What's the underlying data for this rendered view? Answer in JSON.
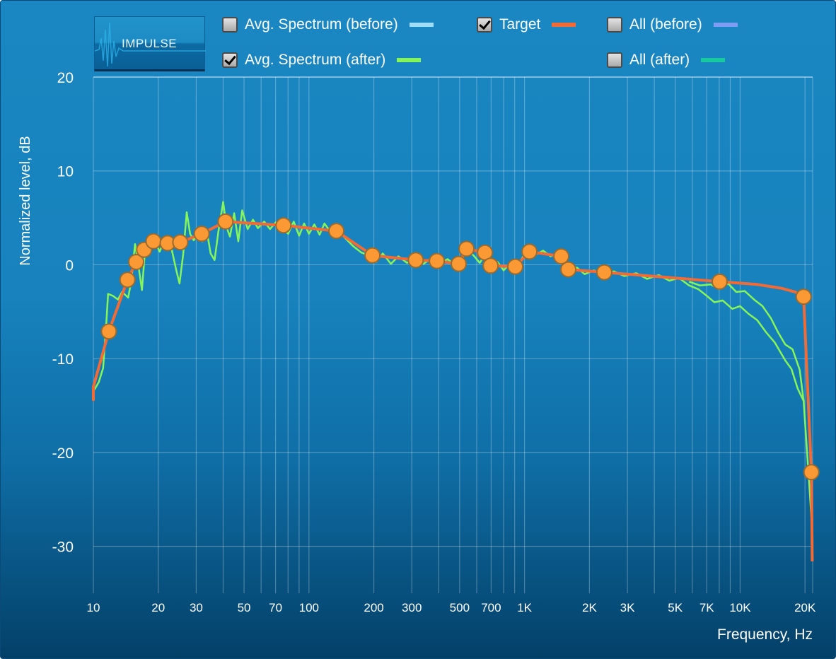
{
  "impulse_button": {
    "label": "IMPULSE"
  },
  "legend": [
    {
      "label": "Avg. Spectrum (before)",
      "checked": false,
      "color": "#9fdcf8"
    },
    {
      "label": "Avg. Spectrum (after)",
      "checked": true,
      "color": "#85f55a"
    },
    {
      "label": "Target",
      "checked": true,
      "color": "#f26a35"
    },
    {
      "label": "All (before)",
      "checked": false,
      "color": "#7f9cf5"
    },
    {
      "label": "All (after)",
      "checked": false,
      "color": "#19c9a0"
    }
  ],
  "chart_data": {
    "type": "line",
    "xlabel": "Frequency, Hz",
    "ylabel": "Normalized level, dB",
    "xscale": "log",
    "xlim": [
      10,
      21700
    ],
    "ylim": [
      -35,
      20
    ],
    "grid": true,
    "xticks": [
      {
        "v": 10,
        "label": "10"
      },
      {
        "v": 20,
        "label": "20"
      },
      {
        "v": 30,
        "label": "30"
      },
      {
        "v": 50,
        "label": "50"
      },
      {
        "v": 70,
        "label": "70"
      },
      {
        "v": 100,
        "label": "100"
      },
      {
        "v": 200,
        "label": "200"
      },
      {
        "v": 300,
        "label": "300"
      },
      {
        "v": 500,
        "label": "500"
      },
      {
        "v": 700,
        "label": "700"
      },
      {
        "v": 1000,
        "label": "1K"
      },
      {
        "v": 2000,
        "label": "2K"
      },
      {
        "v": 3000,
        "label": "3K"
      },
      {
        "v": 5000,
        "label": "5K"
      },
      {
        "v": 7000,
        "label": "7K"
      },
      {
        "v": 10000,
        "label": "10K"
      },
      {
        "v": 20000,
        "label": "20K"
      }
    ],
    "xgrid": [
      10,
      20,
      30,
      40,
      50,
      60,
      70,
      80,
      90,
      100,
      200,
      300,
      400,
      500,
      600,
      700,
      800,
      900,
      1000,
      2000,
      3000,
      4000,
      5000,
      6000,
      7000,
      8000,
      9000,
      10000,
      20000
    ],
    "yticks": [
      {
        "v": 20,
        "label": "20"
      },
      {
        "v": 10,
        "label": "10"
      },
      {
        "v": 0,
        "label": "0"
      },
      {
        "v": -10,
        "label": "-10"
      },
      {
        "v": -20,
        "label": "-20"
      },
      {
        "v": -30,
        "label": "-30"
      }
    ],
    "series": [
      {
        "name": "Avg. Spectrum (after) L",
        "color": "#85f55a",
        "points": [
          [
            10,
            -13.5
          ],
          [
            10.6,
            -12.5
          ],
          [
            11.1,
            -11
          ],
          [
            11.5,
            -6
          ],
          [
            11.7,
            -3.1
          ],
          [
            12.3,
            -3.3
          ],
          [
            13,
            -3.7
          ],
          [
            13.6,
            -2.9
          ],
          [
            14.5,
            -3.5
          ],
          [
            15,
            -1.7
          ],
          [
            15.6,
            2.2
          ],
          [
            16,
            0.7
          ],
          [
            16.8,
            -2.7
          ],
          [
            17.3,
            1.1
          ],
          [
            18.1,
            2.2
          ],
          [
            19.3,
            2.6
          ],
          [
            20.3,
            1.4
          ],
          [
            21.4,
            2.7
          ],
          [
            22.7,
            2.4
          ],
          [
            24.2,
            -0.5
          ],
          [
            25.1,
            -2
          ],
          [
            26.1,
            1.1
          ],
          [
            27.1,
            5.6
          ],
          [
            28.1,
            3.3
          ],
          [
            29.2,
            2.6
          ],
          [
            30.8,
            3.5
          ],
          [
            32,
            2.5
          ],
          [
            33.5,
            3.8
          ],
          [
            35,
            1.2
          ],
          [
            36.5,
            0.5
          ],
          [
            38,
            3.5
          ],
          [
            40,
            6.7
          ],
          [
            41.5,
            4
          ],
          [
            43,
            3
          ],
          [
            45,
            5.5
          ],
          [
            47,
            2.5
          ],
          [
            49,
            5.8
          ],
          [
            52,
            3.8
          ],
          [
            55,
            4.8
          ],
          [
            58,
            3.9
          ],
          [
            62,
            4.6
          ],
          [
            66,
            3.8
          ],
          [
            70,
            4.5
          ],
          [
            75,
            4
          ],
          [
            80,
            3.3
          ],
          [
            85,
            4.6
          ],
          [
            90,
            3.1
          ],
          [
            95,
            4.4
          ],
          [
            100,
            3.3
          ],
          [
            106,
            4.3
          ],
          [
            112,
            3.2
          ],
          [
            118,
            4.4
          ],
          [
            125,
            3.6
          ],
          [
            134,
            3.8
          ],
          [
            145,
            3
          ],
          [
            160,
            2
          ],
          [
            175,
            1.3
          ],
          [
            190,
            1
          ],
          [
            205,
            0.3
          ],
          [
            220,
            1.2
          ],
          [
            240,
            0.1
          ],
          [
            260,
            0.9
          ],
          [
            285,
            0.2
          ],
          [
            310,
            0.8
          ],
          [
            340,
            0.1
          ],
          [
            370,
            0.7
          ],
          [
            400,
            0.1
          ],
          [
            440,
            0.6
          ],
          [
            480,
            -0.1
          ],
          [
            510,
            0.5
          ],
          [
            540,
            1.6
          ],
          [
            580,
            1
          ],
          [
            620,
            0.2
          ],
          [
            660,
            1.2
          ],
          [
            700,
            -0.5
          ],
          [
            750,
            0.3
          ],
          [
            800,
            -0.6
          ],
          [
            860,
            0.2
          ],
          [
            920,
            -0.3
          ],
          [
            980,
            0.8
          ],
          [
            1050,
            1.6
          ],
          [
            1130,
            1.1
          ],
          [
            1220,
            1.5
          ],
          [
            1320,
            0.9
          ],
          [
            1420,
            1.2
          ],
          [
            1500,
            0.2
          ],
          [
            1600,
            -0.8
          ],
          [
            1750,
            -0.3
          ],
          [
            1900,
            -1
          ],
          [
            2100,
            -0.6
          ],
          [
            2300,
            -1
          ],
          [
            2600,
            -0.7
          ],
          [
            2900,
            -1.2
          ],
          [
            3300,
            -0.9
          ],
          [
            3700,
            -1.5
          ],
          [
            4200,
            -1.1
          ],
          [
            4700,
            -1.7
          ],
          [
            5200,
            -1.4
          ],
          [
            5800,
            -2.2
          ],
          [
            6400,
            -2.6
          ],
          [
            7000,
            -3.3
          ],
          [
            7600,
            -4
          ],
          [
            8300,
            -3.8
          ],
          [
            9200,
            -4.7
          ],
          [
            10000,
            -4.4
          ],
          [
            10900,
            -5.2
          ],
          [
            12000,
            -5.9
          ],
          [
            13200,
            -7.2
          ],
          [
            14500,
            -8.3
          ],
          [
            16200,
            -10.2
          ],
          [
            17300,
            -11.1
          ],
          [
            18500,
            -13.2
          ],
          [
            19700,
            -14.5
          ],
          [
            21000,
            -24
          ],
          [
            21600,
            -28.3
          ]
        ]
      },
      {
        "name": "Avg. Spectrum (after) R",
        "color": "#85f55a",
        "points": [
          [
            5800,
            -1.8
          ],
          [
            6500,
            -2.2
          ],
          [
            7300,
            -2.1
          ],
          [
            8000,
            -2.6
          ],
          [
            8800,
            -2
          ],
          [
            9600,
            -2.9
          ],
          [
            10500,
            -2.8
          ],
          [
            11600,
            -3.7
          ],
          [
            12700,
            -4.4
          ],
          [
            13900,
            -5.7
          ],
          [
            15000,
            -7.2
          ],
          [
            16200,
            -8.5
          ],
          [
            17500,
            -9
          ],
          [
            18900,
            -11.2
          ],
          [
            19700,
            -14.5
          ]
        ]
      },
      {
        "name": "Target",
        "color": "#f26a35",
        "points": [
          [
            10,
            -14.5
          ],
          [
            10,
            -13
          ],
          [
            11.8,
            -7.1
          ],
          [
            14.4,
            -1.6
          ],
          [
            15.8,
            0.3
          ],
          [
            17.2,
            1.6
          ],
          [
            19,
            2.5
          ],
          [
            22.1,
            2.3
          ],
          [
            25.3,
            2.4
          ],
          [
            31.8,
            3.3
          ],
          [
            41,
            4.6
          ],
          [
            76.2,
            4.2
          ],
          [
            134,
            3.6
          ],
          [
            197,
            1
          ],
          [
            313,
            0.5
          ],
          [
            392,
            0.4
          ],
          [
            495,
            0.1
          ],
          [
            538,
            1.7
          ],
          [
            655,
            1.3
          ],
          [
            696,
            -0.1
          ],
          [
            906,
            -0.2
          ],
          [
            1054,
            1.4
          ],
          [
            1480,
            0.9
          ],
          [
            1596,
            -0.5
          ],
          [
            2344,
            -0.8
          ],
          [
            8035,
            -1.8
          ],
          [
            12000,
            -2.1
          ],
          [
            15500,
            -2.5
          ],
          [
            18000,
            -2.9
          ],
          [
            19700,
            -3.4
          ],
          [
            21400,
            -22.1
          ],
          [
            21600,
            -31.6
          ]
        ]
      }
    ],
    "target_control_points": [
      [
        11.8,
        -7.1
      ],
      [
        14.4,
        -1.6
      ],
      [
        15.8,
        0.3
      ],
      [
        17.2,
        1.6
      ],
      [
        19,
        2.5
      ],
      [
        22.1,
        2.3
      ],
      [
        25.3,
        2.4
      ],
      [
        31.8,
        3.3
      ],
      [
        41,
        4.6
      ],
      [
        76.2,
        4.2
      ],
      [
        134,
        3.6
      ],
      [
        197,
        1
      ],
      [
        313,
        0.5
      ],
      [
        392,
        0.4
      ],
      [
        495,
        0.1
      ],
      [
        538,
        1.7
      ],
      [
        655,
        1.3
      ],
      [
        696,
        -0.1
      ],
      [
        906,
        -0.2
      ],
      [
        1054,
        1.4
      ],
      [
        1480,
        0.9
      ],
      [
        1596,
        -0.5
      ],
      [
        2344,
        -0.8
      ],
      [
        8035,
        -1.8
      ],
      [
        19700,
        -3.4
      ],
      [
        21400,
        -22.1
      ]
    ]
  }
}
